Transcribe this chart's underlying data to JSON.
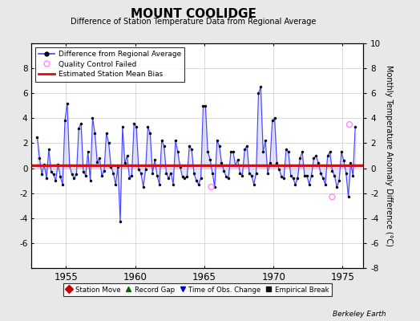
{
  "title": "MOUNT COOLIDGE",
  "subtitle": "Difference of Station Temperature Data from Regional Average",
  "ylabel_right": "Monthly Temperature Anomaly Difference (°C)",
  "xlim": [
    1952.5,
    1976.5
  ],
  "ylim": [
    -8,
    10
  ],
  "yticks": [
    -8,
    -6,
    -4,
    -2,
    0,
    2,
    4,
    6,
    8,
    10
  ],
  "xticks": [
    1955,
    1960,
    1965,
    1970,
    1975
  ],
  "bias_value": 0.2,
  "background_color": "#e8e8e8",
  "plot_bg_color": "#ffffff",
  "line_color": "#4444ff",
  "fill_color": "#aaaaff",
  "bias_color": "#ff0000",
  "qc_color": "#ff88ff",
  "credit": "Berkeley Earth",
  "years": [
    1952.917,
    1953.083,
    1953.25,
    1953.417,
    1953.583,
    1953.75,
    1953.917,
    1954.083,
    1954.25,
    1954.417,
    1954.583,
    1954.75,
    1954.917,
    1955.083,
    1955.25,
    1955.417,
    1955.583,
    1955.75,
    1955.917,
    1956.083,
    1956.25,
    1956.417,
    1956.583,
    1956.75,
    1956.917,
    1957.083,
    1957.25,
    1957.417,
    1957.583,
    1957.75,
    1957.917,
    1958.083,
    1958.25,
    1958.417,
    1958.583,
    1958.75,
    1958.917,
    1959.083,
    1959.25,
    1959.417,
    1959.583,
    1959.75,
    1959.917,
    1960.083,
    1960.25,
    1960.417,
    1960.583,
    1960.75,
    1960.917,
    1961.083,
    1961.25,
    1961.417,
    1961.583,
    1961.75,
    1961.917,
    1962.083,
    1962.25,
    1962.417,
    1962.583,
    1962.75,
    1962.917,
    1963.083,
    1963.25,
    1963.417,
    1963.583,
    1963.75,
    1963.917,
    1964.083,
    1964.25,
    1964.417,
    1964.583,
    1964.75,
    1964.917,
    1965.083,
    1965.25,
    1965.417,
    1965.583,
    1965.75,
    1965.917,
    1966.083,
    1966.25,
    1966.417,
    1966.583,
    1966.75,
    1966.917,
    1967.083,
    1967.25,
    1967.417,
    1967.583,
    1967.75,
    1967.917,
    1968.083,
    1968.25,
    1968.417,
    1968.583,
    1968.75,
    1968.917,
    1969.083,
    1969.25,
    1969.417,
    1969.583,
    1969.75,
    1969.917,
    1970.083,
    1970.25,
    1970.417,
    1970.583,
    1970.75,
    1970.917,
    1971.083,
    1971.25,
    1971.417,
    1971.583,
    1971.75,
    1971.917,
    1972.083,
    1972.25,
    1972.417,
    1972.583,
    1972.75,
    1972.917,
    1973.083,
    1973.25,
    1973.417,
    1973.583,
    1973.75,
    1973.917,
    1974.083,
    1974.25,
    1974.417,
    1974.583,
    1974.75,
    1974.917,
    1975.083,
    1975.25,
    1975.417,
    1975.583,
    1975.75,
    1975.917
  ],
  "values": [
    2.5,
    0.8,
    -0.5,
    0.3,
    -0.8,
    1.5,
    -0.3,
    -0.5,
    -1.0,
    0.3,
    -0.7,
    -1.3,
    3.8,
    5.2,
    0.2,
    -0.5,
    -0.8,
    -0.5,
    3.2,
    3.6,
    -0.3,
    -0.6,
    1.3,
    -1.0,
    4.0,
    2.8,
    0.5,
    0.8,
    -0.6,
    -0.2,
    2.8,
    2.0,
    0.1,
    -0.4,
    -1.3,
    0.1,
    -4.3,
    3.3,
    0.4,
    1.0,
    -0.8,
    -0.6,
    3.6,
    3.3,
    -0.1,
    -0.4,
    -1.5,
    -0.1,
    3.3,
    2.8,
    -0.4,
    0.7,
    -0.6,
    -1.3,
    2.2,
    1.8,
    -0.4,
    -0.8,
    -0.4,
    -1.3,
    2.2,
    1.3,
    0.1,
    -0.7,
    -0.8,
    -0.7,
    1.8,
    1.5,
    -0.4,
    -1.0,
    -1.3,
    -0.8,
    5.0,
    5.0,
    1.3,
    0.7,
    -0.4,
    -1.5,
    2.2,
    1.8,
    0.4,
    -0.2,
    -0.7,
    -0.8,
    1.3,
    1.3,
    0.2,
    0.7,
    -0.4,
    -0.6,
    1.5,
    1.8,
    -0.4,
    -0.6,
    -1.3,
    -0.4,
    6.0,
    6.5,
    1.3,
    2.2,
    -0.4,
    0.4,
    3.8,
    4.0,
    0.4,
    -0.1,
    -0.7,
    -0.8,
    1.5,
    1.3,
    -0.6,
    -0.8,
    -1.3,
    -0.8,
    0.8,
    1.3,
    -0.6,
    -0.6,
    -1.3,
    -0.6,
    0.8,
    1.0,
    0.4,
    -0.4,
    -0.8,
    -1.3,
    1.0,
    1.3,
    -0.2,
    -0.6,
    -1.5,
    -1.0,
    1.3,
    0.6,
    -0.4,
    -2.3,
    0.4,
    -0.6,
    3.3
  ],
  "qc_failed_years": [
    1965.5,
    1974.25,
    1975.5
  ],
  "qc_failed_values": [
    -1.5,
    -2.3,
    3.5
  ]
}
